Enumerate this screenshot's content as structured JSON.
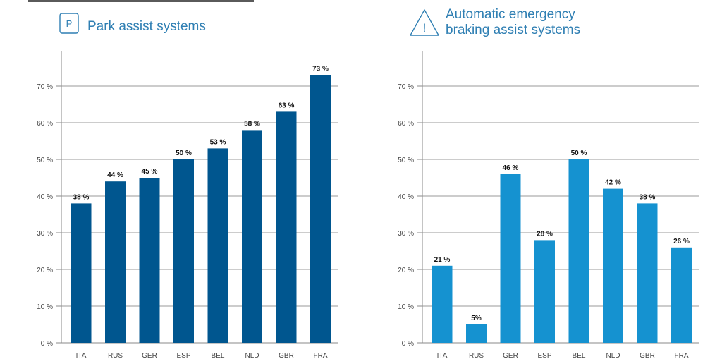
{
  "charts": [
    {
      "icon": {
        "name": "parking-icon",
        "glyph": "P"
      },
      "title_lines": [
        "Park assist systems"
      ],
      "color": "#00568f"
    },
    {
      "icon": {
        "name": "warning-icon",
        "glyph": "!"
      },
      "title_lines": [
        "Automatic emergency",
        "braking assist systems"
      ],
      "color": "#1592d0"
    }
  ],
  "chart_data": [
    {
      "type": "bar",
      "title": "Park assist systems",
      "categories": [
        "ITA",
        "RUS",
        "GER",
        "ESP",
        "BEL",
        "NLD",
        "GBR",
        "FRA"
      ],
      "values": [
        38,
        44,
        45,
        50,
        53,
        58,
        63,
        73
      ],
      "value_labels": [
        "38 %",
        "44 %",
        "45 %",
        "50 %",
        "53 %",
        "58 %",
        "63 %",
        "73 %"
      ],
      "yticks": [
        0,
        10,
        20,
        30,
        40,
        50,
        60,
        70
      ],
      "ytick_labels": [
        "0 %",
        "10 %",
        "20 %",
        "30 %",
        "40 %",
        "50 %",
        "60 %",
        "70 %"
      ],
      "ylim": [
        0,
        80
      ],
      "xlabel": "",
      "ylabel": "",
      "grid": true
    },
    {
      "type": "bar",
      "title": "Automatic emergency braking assist systems",
      "categories": [
        "ITA",
        "RUS",
        "GER",
        "ESP",
        "BEL",
        "NLD",
        "GBR",
        "FRA"
      ],
      "values": [
        21,
        5,
        46,
        28,
        50,
        42,
        38,
        26
      ],
      "value_labels": [
        "21 %",
        "5%",
        "46 %",
        "28 %",
        "50 %",
        "42 %",
        "38 %",
        "26 %"
      ],
      "yticks": [
        0,
        10,
        20,
        30,
        40,
        50,
        60,
        70
      ],
      "ytick_labels": [
        "0 %",
        "10 %",
        "20 %",
        "30 %",
        "40 %",
        "50 %",
        "60 %",
        "70 %"
      ],
      "ylim": [
        0,
        80
      ],
      "xlabel": "",
      "ylabel": "",
      "grid": true
    }
  ]
}
